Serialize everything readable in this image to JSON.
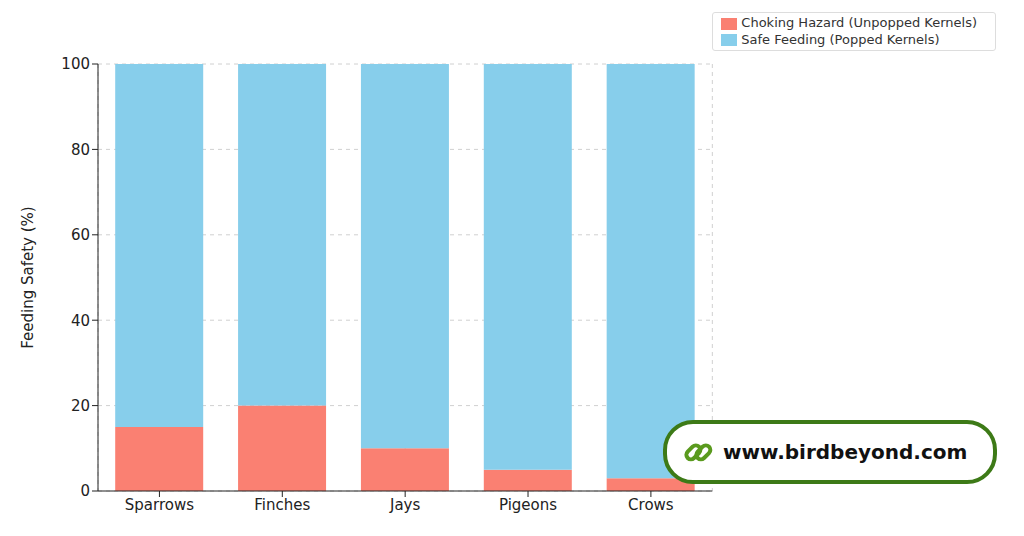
{
  "chart_data": {
    "type": "bar",
    "stacked": true,
    "categories": [
      "Sparrows",
      "Finches",
      "Jays",
      "Pigeons",
      "Crows"
    ],
    "series": [
      {
        "name": "Choking Hazard (Unpopped Kernels)",
        "color": "#fa8072",
        "values": [
          15,
          20,
          10,
          5,
          3
        ]
      },
      {
        "name": "Safe Feeding (Popped Kernels)",
        "color": "#87ceeb",
        "values": [
          85,
          80,
          90,
          95,
          97
        ]
      }
    ],
    "y_label": "Feeding Safety (%)",
    "ylim": [
      0,
      100
    ],
    "yticks": [
      0,
      20,
      40,
      60,
      80,
      100
    ],
    "grid": true,
    "legend": "upper right",
    "annotations": [
      "www.birdbeyond.com"
    ]
  }
}
